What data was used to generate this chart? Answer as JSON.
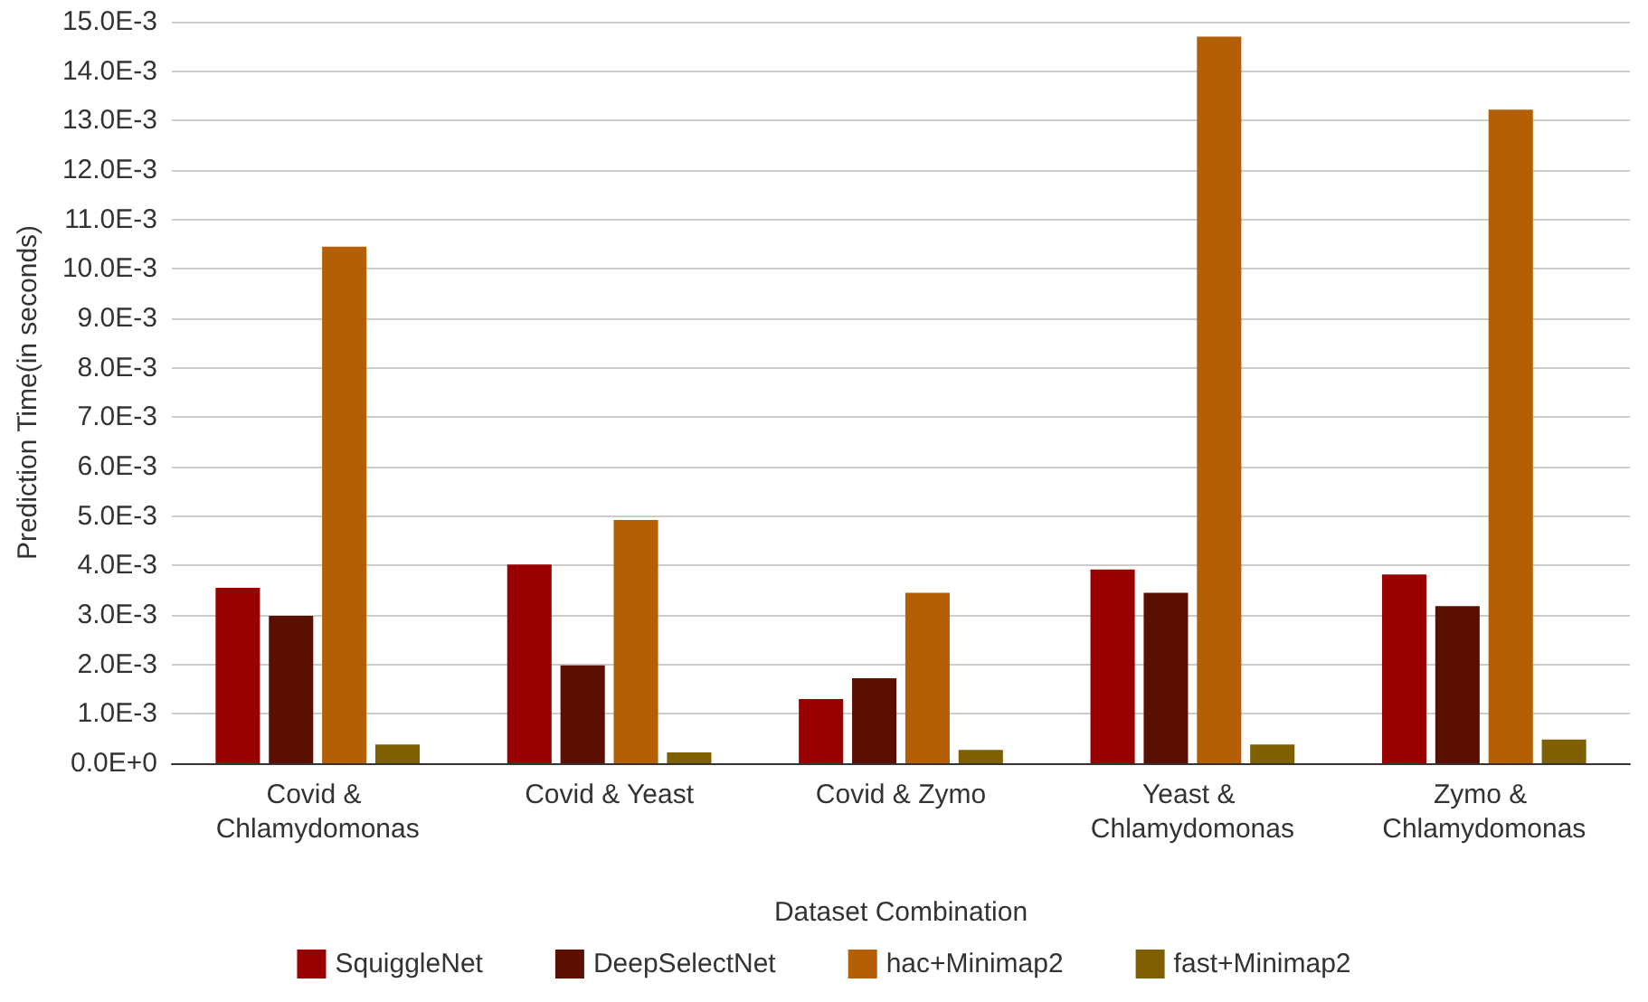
{
  "chart_data": {
    "type": "bar",
    "xlabel": "Dataset Combination",
    "ylabel": "Prediction Time(in seconds)",
    "categories": [
      "Covid & Chlamydomonas",
      "Covid & Yeast",
      "Covid & Zymo",
      "Yeast & Chlamydomonas",
      "Zymo & Chlamydomonas"
    ],
    "series": [
      {
        "name": "SquiggleNet",
        "color": "#990000",
        "values": [
          0.00355,
          0.00402,
          0.0013,
          0.00392,
          0.00382
        ]
      },
      {
        "name": "DeepSelectNet",
        "color": "#5b0f00",
        "values": [
          0.00298,
          0.00198,
          0.00172,
          0.00345,
          0.00318
        ]
      },
      {
        "name": "hac+Minimap2",
        "color": "#b45f06",
        "values": [
          0.01045,
          0.00492,
          0.00345,
          0.0147,
          0.01322
        ]
      },
      {
        "name": "fast+Minimap2",
        "color": "#7f6000",
        "values": [
          0.00038,
          0.00022,
          0.00027,
          0.00038,
          0.00048
        ]
      }
    ],
    "ylim": [
      0,
      0.015
    ],
    "yticks": [
      {
        "value": 0,
        "label": "0.0E+0"
      },
      {
        "value": 0.001,
        "label": "1.0E-3"
      },
      {
        "value": 0.002,
        "label": "2.0E-3"
      },
      {
        "value": 0.003,
        "label": "3.0E-3"
      },
      {
        "value": 0.004,
        "label": "4.0E-3"
      },
      {
        "value": 0.005,
        "label": "5.0E-3"
      },
      {
        "value": 0.006,
        "label": "6.0E-3"
      },
      {
        "value": 0.007,
        "label": "7.0E-3"
      },
      {
        "value": 0.008,
        "label": "8.0E-3"
      },
      {
        "value": 0.009,
        "label": "9.0E-3"
      },
      {
        "value": 0.01,
        "label": "10.0E-3"
      },
      {
        "value": 0.011,
        "label": "11.0E-3"
      },
      {
        "value": 0.012,
        "label": "12.0E-3"
      },
      {
        "value": 0.013,
        "label": "13.0E-3"
      },
      {
        "value": 0.014,
        "label": "14.0E-3"
      },
      {
        "value": 0.015,
        "label": "15.0E-3"
      }
    ],
    "grid": "y",
    "legend": "bottom"
  }
}
